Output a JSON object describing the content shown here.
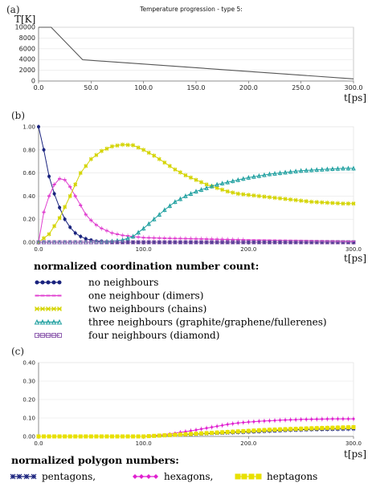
{
  "chart_data": [
    {
      "type": "line",
      "panel_label": "(a)",
      "title": "Temperature progression - type 5:",
      "ylabel": "T[K]",
      "xlabel": "t[ps]",
      "xlim": [
        0,
        300
      ],
      "ylim": [
        0,
        10000
      ],
      "x_ticks": [
        "0.0",
        "50.0",
        "100.0",
        "150.0",
        "200.0",
        "250.0",
        "300.0"
      ],
      "y_ticks": [
        "0",
        "2000",
        "4000",
        "6000",
        "8000",
        "10000"
      ],
      "series": [
        {
          "color": "#555555",
          "x": [
            0,
            12,
            42,
            300
          ],
          "y": [
            10000,
            10000,
            3950,
            400
          ]
        }
      ]
    },
    {
      "type": "line",
      "panel_label": "(b)",
      "xlabel": "t[ps]",
      "xlim": [
        0,
        300
      ],
      "ylim": [
        0,
        1
      ],
      "x_ticks": [
        "0.0",
        "100.0",
        "200.0",
        "300.0"
      ],
      "y_ticks": [
        "0.00",
        "0.20",
        "0.40",
        "0.60",
        "0.80",
        "1.00"
      ],
      "legend_title": "normalized coordination number count:",
      "legend_placement": "below",
      "series": [
        {
          "name": "no neighbours",
          "color": "#1a237e",
          "marker": "circle",
          "x": [
            0,
            5,
            10,
            15,
            20,
            25,
            30,
            35,
            40,
            45,
            50,
            55,
            60,
            65,
            70,
            80,
            100,
            150,
            200,
            250,
            300
          ],
          "y": [
            1.0,
            0.8,
            0.57,
            0.42,
            0.3,
            0.2,
            0.13,
            0.08,
            0.05,
            0.03,
            0.02,
            0.01,
            0.01,
            0.0,
            0.0,
            0.0,
            0.0,
            0.0,
            0.0,
            0.0,
            0.0
          ]
        },
        {
          "name": "one neighbour (dimers)",
          "color": "#e040d0",
          "marker": "dash",
          "x": [
            0,
            5,
            10,
            15,
            20,
            25,
            30,
            35,
            40,
            45,
            50,
            55,
            60,
            70,
            80,
            90,
            100,
            120,
            150,
            200,
            250,
            300
          ],
          "y": [
            0.0,
            0.26,
            0.4,
            0.5,
            0.55,
            0.54,
            0.48,
            0.4,
            0.32,
            0.24,
            0.19,
            0.15,
            0.12,
            0.08,
            0.06,
            0.05,
            0.04,
            0.035,
            0.03,
            0.02,
            0.015,
            0.01
          ]
        },
        {
          "name": "two neighbours (chains)",
          "color": "#d4d400",
          "marker": "cross",
          "x": [
            0,
            10,
            20,
            30,
            40,
            50,
            60,
            70,
            80,
            90,
            100,
            110,
            120,
            130,
            140,
            150,
            160,
            170,
            180,
            190,
            200,
            210,
            220,
            230,
            240,
            250,
            260,
            270,
            280,
            290,
            300
          ],
          "y": [
            0.0,
            0.07,
            0.21,
            0.4,
            0.6,
            0.72,
            0.79,
            0.83,
            0.845,
            0.84,
            0.8,
            0.75,
            0.69,
            0.63,
            0.58,
            0.54,
            0.5,
            0.47,
            0.44,
            0.42,
            0.41,
            0.4,
            0.39,
            0.38,
            0.37,
            0.36,
            0.35,
            0.345,
            0.34,
            0.335,
            0.335
          ]
        },
        {
          "name": "three neighbours (graphite/graphene/fullerenes)",
          "color": "#20a0a0",
          "marker": "triangle",
          "x": [
            0,
            50,
            70,
            80,
            90,
            100,
            110,
            120,
            130,
            140,
            150,
            160,
            170,
            180,
            190,
            200,
            210,
            220,
            230,
            240,
            250,
            260,
            270,
            280,
            290,
            300
          ],
          "y": [
            0.0,
            0.0,
            0.01,
            0.02,
            0.05,
            0.12,
            0.2,
            0.28,
            0.35,
            0.4,
            0.44,
            0.47,
            0.5,
            0.52,
            0.54,
            0.56,
            0.575,
            0.59,
            0.6,
            0.61,
            0.62,
            0.625,
            0.63,
            0.635,
            0.64,
            0.64
          ]
        },
        {
          "name": "four neighbours (diamond)",
          "color": "#9060b0",
          "marker": "square",
          "x": [
            0,
            50,
            100,
            150,
            200,
            250,
            300
          ],
          "y": [
            0.0,
            0.0,
            0.0,
            0.0,
            0.0,
            0.0,
            0.0
          ]
        }
      ]
    },
    {
      "type": "line",
      "panel_label": "(c)",
      "xlabel": "t[ps]",
      "xlim": [
        0,
        300
      ],
      "ylim": [
        0,
        0.4
      ],
      "x_ticks": [
        "0.0",
        "100.0",
        "200.0",
        "300.0"
      ],
      "y_ticks": [
        "0.00",
        "0.10",
        "0.20",
        "0.30",
        "0.40"
      ],
      "legend_title": "normalized polygon numbers:",
      "legend_placement": "below",
      "series": [
        {
          "name": "pentagons,",
          "color": "#1a237e",
          "marker": "star",
          "x": [
            0,
            50,
            100,
            120,
            140,
            160,
            180,
            200,
            220,
            240,
            260,
            280,
            300
          ],
          "y": [
            0.0,
            0.0,
            0.0,
            0.005,
            0.01,
            0.015,
            0.02,
            0.025,
            0.03,
            0.035,
            0.038,
            0.04,
            0.042
          ]
        },
        {
          "name": "hexagons,",
          "color": "#e020d0",
          "marker": "diamond",
          "x": [
            0,
            50,
            100,
            110,
            120,
            130,
            140,
            150,
            160,
            170,
            180,
            190,
            200,
            210,
            220,
            230,
            240,
            250,
            260,
            270,
            280,
            290,
            300
          ],
          "y": [
            0.0,
            0.0,
            0.0,
            0.005,
            0.01,
            0.018,
            0.026,
            0.035,
            0.045,
            0.055,
            0.065,
            0.073,
            0.078,
            0.082,
            0.085,
            0.088,
            0.09,
            0.092,
            0.093,
            0.094,
            0.095,
            0.095,
            0.095
          ]
        },
        {
          "name": "heptagons",
          "color": "#e8e000",
          "marker": "square",
          "x": [
            0,
            50,
            100,
            120,
            140,
            160,
            180,
            200,
            220,
            240,
            260,
            280,
            300
          ],
          "y": [
            0.0,
            0.0,
            0.0,
            0.006,
            0.012,
            0.018,
            0.024,
            0.03,
            0.036,
            0.04,
            0.044,
            0.047,
            0.05
          ]
        }
      ]
    }
  ]
}
